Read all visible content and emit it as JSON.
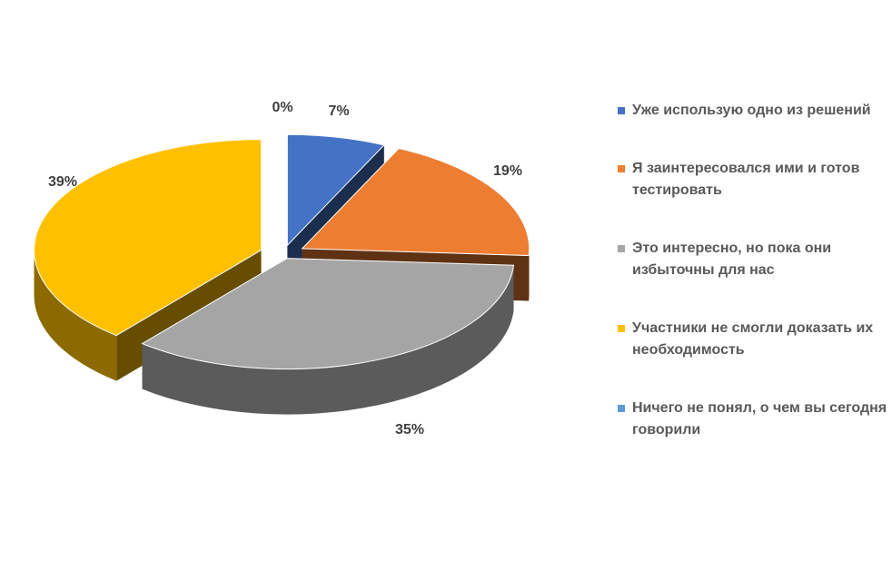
{
  "chart_data": {
    "type": "pie",
    "three_d": true,
    "exploded": true,
    "title": "",
    "legend_position": "right",
    "slices": [
      {
        "label": "Уже использую одно из решений",
        "value": 7,
        "display": "7%",
        "color": "#4472c4"
      },
      {
        "label": "Я заинтересовался ими и готов тестировать",
        "value": 19,
        "display": "19%",
        "color": "#ed7d31"
      },
      {
        "label": "Это интересно, но пока они избыточны для нас",
        "value": 35,
        "display": "35%",
        "color": "#a5a5a5"
      },
      {
        "label": "Участники не смогли доказать их необходимость",
        "value": 39,
        "display": "39%",
        "color": "#ffc000"
      },
      {
        "label": "Ничего не понял, о чем вы сегодня говорили",
        "value": 0,
        "display": "0%",
        "color": "#5b9bd5"
      }
    ]
  }
}
